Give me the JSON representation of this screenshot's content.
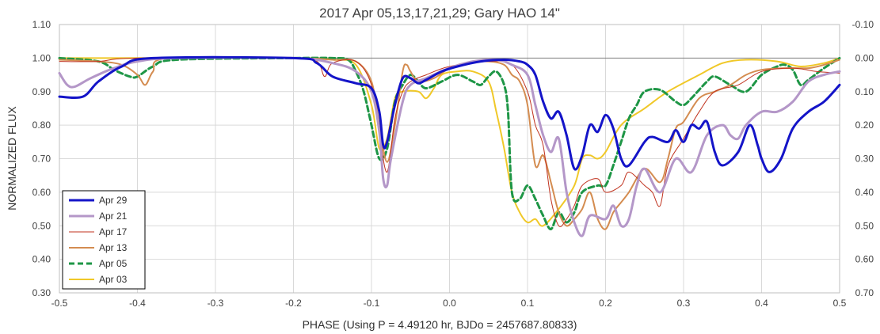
{
  "chart_data": {
    "type": "line",
    "title": "2017 Apr 05,13,17,21,29; Gary HAO 14\"",
    "xlabel": "PHASE (Using P = 4.49120 hr, BJDo = 2457687.80833)",
    "ylabel": "NORMALIZED FLUX",
    "xlim": [
      -0.5,
      0.5
    ],
    "ylim": [
      0.3,
      1.1
    ],
    "y2lim": [
      0.7,
      -0.1
    ],
    "x_ticks": [
      "-0.5",
      "-0.4",
      "-0.3",
      "-0.2",
      "-0.1",
      "0.0",
      "0.1",
      "0.2",
      "0.3",
      "0.4",
      "0.5"
    ],
    "y_ticks": [
      "0.30",
      "0.40",
      "0.50",
      "0.60",
      "0.70",
      "0.80",
      "0.90",
      "1.00",
      "1.10"
    ],
    "y2_ticks": [
      "0.70",
      "0.60",
      "0.50",
      "0.40",
      "0.30",
      "0.20",
      "0.10",
      "0.00",
      "-0.10"
    ],
    "grid": true,
    "legend_position": "bottom-left",
    "series": [
      {
        "name": "Apr 29",
        "color": "#1414c8",
        "width": 3,
        "dash": "",
        "points": [
          [
            -0.5,
            0.885
          ],
          [
            -0.47,
            0.885
          ],
          [
            -0.45,
            0.93
          ],
          [
            -0.42,
            0.975
          ],
          [
            -0.38,
            1.0
          ],
          [
            -0.2,
            1.0
          ],
          [
            -0.17,
            0.985
          ],
          [
            -0.15,
            0.945
          ],
          [
            -0.12,
            0.925
          ],
          [
            -0.1,
            0.91
          ],
          [
            -0.09,
            0.84
          ],
          [
            -0.085,
            0.74
          ],
          [
            -0.08,
            0.75
          ],
          [
            -0.07,
            0.86
          ],
          [
            -0.06,
            0.94
          ],
          [
            -0.05,
            0.94
          ],
          [
            -0.04,
            0.925
          ],
          [
            -0.03,
            0.935
          ],
          [
            -0.01,
            0.96
          ],
          [
            0.01,
            0.975
          ],
          [
            0.04,
            0.99
          ],
          [
            0.07,
            0.995
          ],
          [
            0.09,
            0.99
          ],
          [
            0.1,
            0.98
          ],
          [
            0.11,
            0.95
          ],
          [
            0.12,
            0.87
          ],
          [
            0.13,
            0.82
          ],
          [
            0.14,
            0.84
          ],
          [
            0.15,
            0.77
          ],
          [
            0.16,
            0.67
          ],
          [
            0.17,
            0.71
          ],
          [
            0.18,
            0.8
          ],
          [
            0.19,
            0.78
          ],
          [
            0.2,
            0.83
          ],
          [
            0.21,
            0.79
          ],
          [
            0.22,
            0.7
          ],
          [
            0.23,
            0.68
          ],
          [
            0.25,
            0.75
          ],
          [
            0.26,
            0.765
          ],
          [
            0.28,
            0.75
          ],
          [
            0.29,
            0.785
          ],
          [
            0.3,
            0.75
          ],
          [
            0.31,
            0.8
          ],
          [
            0.32,
            0.79
          ],
          [
            0.33,
            0.81
          ],
          [
            0.34,
            0.72
          ],
          [
            0.35,
            0.68
          ],
          [
            0.37,
            0.72
          ],
          [
            0.385,
            0.8
          ],
          [
            0.395,
            0.74
          ],
          [
            0.4,
            0.7
          ],
          [
            0.41,
            0.66
          ],
          [
            0.425,
            0.7
          ],
          [
            0.44,
            0.79
          ],
          [
            0.46,
            0.84
          ],
          [
            0.48,
            0.87
          ],
          [
            0.5,
            0.92
          ]
        ]
      },
      {
        "name": "Apr 21",
        "color": "#b497c8",
        "width": 3,
        "dash": "",
        "points": [
          [
            -0.5,
            0.955
          ],
          [
            -0.49,
            0.92
          ],
          [
            -0.48,
            0.915
          ],
          [
            -0.46,
            0.94
          ],
          [
            -0.43,
            0.97
          ],
          [
            -0.4,
            0.99
          ],
          [
            -0.35,
            1.0
          ],
          [
            -0.2,
            1.0
          ],
          [
            -0.15,
            0.985
          ],
          [
            -0.12,
            0.96
          ],
          [
            -0.1,
            0.9
          ],
          [
            -0.09,
            0.78
          ],
          [
            -0.085,
            0.64
          ],
          [
            -0.08,
            0.62
          ],
          [
            -0.075,
            0.7
          ],
          [
            -0.06,
            0.87
          ],
          [
            -0.05,
            0.92
          ],
          [
            -0.03,
            0.94
          ],
          [
            0.0,
            0.97
          ],
          [
            0.03,
            0.99
          ],
          [
            0.06,
            0.995
          ],
          [
            0.08,
            0.98
          ],
          [
            0.1,
            0.95
          ],
          [
            0.11,
            0.86
          ],
          [
            0.12,
            0.77
          ],
          [
            0.13,
            0.72
          ],
          [
            0.14,
            0.76
          ],
          [
            0.15,
            0.6
          ],
          [
            0.16,
            0.51
          ],
          [
            0.17,
            0.47
          ],
          [
            0.18,
            0.53
          ],
          [
            0.2,
            0.52
          ],
          [
            0.21,
            0.56
          ],
          [
            0.22,
            0.5
          ],
          [
            0.23,
            0.52
          ],
          [
            0.24,
            0.62
          ],
          [
            0.25,
            0.67
          ],
          [
            0.27,
            0.6
          ],
          [
            0.29,
            0.7
          ],
          [
            0.31,
            0.66
          ],
          [
            0.33,
            0.77
          ],
          [
            0.35,
            0.8
          ],
          [
            0.36,
            0.77
          ],
          [
            0.37,
            0.76
          ],
          [
            0.38,
            0.8
          ],
          [
            0.4,
            0.84
          ],
          [
            0.42,
            0.84
          ],
          [
            0.44,
            0.87
          ],
          [
            0.46,
            0.93
          ],
          [
            0.48,
            0.95
          ],
          [
            0.5,
            0.96
          ]
        ]
      },
      {
        "name": "Apr 17",
        "color": "#c0321e",
        "width": 1,
        "dash": "",
        "points": [
          [
            -0.5,
            0.99
          ],
          [
            -0.45,
            0.99
          ],
          [
            -0.4,
            1.0
          ],
          [
            -0.2,
            1.0
          ],
          [
            -0.17,
            0.99
          ],
          [
            -0.16,
            0.945
          ],
          [
            -0.15,
            0.985
          ],
          [
            -0.12,
            0.99
          ],
          [
            -0.1,
            0.92
          ],
          [
            -0.09,
            0.78
          ],
          [
            -0.08,
            0.66
          ],
          [
            -0.07,
            0.82
          ],
          [
            -0.06,
            0.9
          ],
          [
            -0.05,
            0.93
          ],
          [
            -0.03,
            0.95
          ],
          [
            0.0,
            0.975
          ],
          [
            0.05,
            0.99
          ],
          [
            0.08,
            0.98
          ],
          [
            0.1,
            0.9
          ],
          [
            0.11,
            0.8
          ],
          [
            0.12,
            0.74
          ],
          [
            0.13,
            0.58
          ],
          [
            0.14,
            0.5
          ],
          [
            0.15,
            0.52
          ],
          [
            0.16,
            0.56
          ],
          [
            0.17,
            0.62
          ],
          [
            0.19,
            0.64
          ],
          [
            0.2,
            0.6
          ],
          [
            0.22,
            0.62
          ],
          [
            0.23,
            0.66
          ],
          [
            0.25,
            0.62
          ],
          [
            0.26,
            0.6
          ],
          [
            0.27,
            0.56
          ],
          [
            0.28,
            0.68
          ],
          [
            0.3,
            0.76
          ],
          [
            0.32,
            0.84
          ],
          [
            0.34,
            0.9
          ],
          [
            0.37,
            0.92
          ],
          [
            0.4,
            0.96
          ],
          [
            0.44,
            0.97
          ],
          [
            0.47,
            0.96
          ],
          [
            0.5,
            0.955
          ]
        ]
      },
      {
        "name": "Apr 13",
        "color": "#d48c50",
        "width": 2,
        "dash": "",
        "points": [
          [
            -0.5,
            0.995
          ],
          [
            -0.45,
            0.99
          ],
          [
            -0.42,
            0.98
          ],
          [
            -0.4,
            0.95
          ],
          [
            -0.39,
            0.92
          ],
          [
            -0.38,
            0.96
          ],
          [
            -0.36,
            1.0
          ],
          [
            -0.2,
            1.0
          ],
          [
            -0.15,
            0.995
          ],
          [
            -0.12,
            0.99
          ],
          [
            -0.1,
            0.93
          ],
          [
            -0.09,
            0.8
          ],
          [
            -0.08,
            0.69
          ],
          [
            -0.07,
            0.8
          ],
          [
            -0.06,
            0.96
          ],
          [
            -0.055,
            0.98
          ],
          [
            -0.05,
            0.96
          ],
          [
            -0.04,
            0.93
          ],
          [
            -0.02,
            0.94
          ],
          [
            0.0,
            0.97
          ],
          [
            0.02,
            0.985
          ],
          [
            0.05,
            0.99
          ],
          [
            0.07,
            0.98
          ],
          [
            0.08,
            0.95
          ],
          [
            0.09,
            0.93
          ],
          [
            0.1,
            0.86
          ],
          [
            0.11,
            0.68
          ],
          [
            0.12,
            0.71
          ],
          [
            0.13,
            0.63
          ],
          [
            0.14,
            0.54
          ],
          [
            0.15,
            0.5
          ],
          [
            0.16,
            0.52
          ],
          [
            0.17,
            0.55
          ],
          [
            0.18,
            0.6
          ],
          [
            0.19,
            0.52
          ],
          [
            0.2,
            0.49
          ],
          [
            0.21,
            0.54
          ],
          [
            0.22,
            0.57
          ],
          [
            0.23,
            0.6
          ],
          [
            0.25,
            0.67
          ],
          [
            0.27,
            0.63
          ],
          [
            0.28,
            0.7
          ],
          [
            0.29,
            0.79
          ],
          [
            0.3,
            0.81
          ],
          [
            0.32,
            0.88
          ],
          [
            0.34,
            0.9
          ],
          [
            0.36,
            0.92
          ],
          [
            0.38,
            0.95
          ],
          [
            0.4,
            0.965
          ],
          [
            0.43,
            0.97
          ],
          [
            0.46,
            0.97
          ],
          [
            0.48,
            0.98
          ],
          [
            0.5,
            0.995
          ]
        ]
      },
      {
        "name": "Apr 05",
        "color": "#1e9646",
        "width": 3,
        "dash": "7,4",
        "points": [
          [
            -0.5,
            1.0
          ],
          [
            -0.45,
            0.99
          ],
          [
            -0.43,
            0.965
          ],
          [
            -0.41,
            0.945
          ],
          [
            -0.4,
            0.945
          ],
          [
            -0.38,
            0.975
          ],
          [
            -0.35,
            0.995
          ],
          [
            -0.2,
            1.0
          ],
          [
            -0.15,
            1.0
          ],
          [
            -0.13,
            0.995
          ],
          [
            -0.12,
            0.96
          ],
          [
            -0.11,
            0.9
          ],
          [
            -0.1,
            0.8
          ],
          [
            -0.09,
            0.7
          ],
          [
            -0.08,
            0.73
          ],
          [
            -0.07,
            0.87
          ],
          [
            -0.06,
            0.92
          ],
          [
            -0.05,
            0.95
          ],
          [
            -0.04,
            0.93
          ],
          [
            -0.03,
            0.91
          ],
          [
            -0.01,
            0.93
          ],
          [
            0.01,
            0.95
          ],
          [
            0.03,
            0.93
          ],
          [
            0.04,
            0.92
          ],
          [
            0.05,
            0.945
          ],
          [
            0.06,
            0.96
          ],
          [
            0.07,
            0.92
          ],
          [
            0.075,
            0.84
          ],
          [
            0.08,
            0.6
          ],
          [
            0.09,
            0.58
          ],
          [
            0.1,
            0.62
          ],
          [
            0.11,
            0.58
          ],
          [
            0.12,
            0.53
          ],
          [
            0.13,
            0.49
          ],
          [
            0.14,
            0.54
          ],
          [
            0.15,
            0.51
          ],
          [
            0.16,
            0.54
          ],
          [
            0.17,
            0.6
          ],
          [
            0.19,
            0.62
          ],
          [
            0.2,
            0.62
          ],
          [
            0.21,
            0.68
          ],
          [
            0.22,
            0.75
          ],
          [
            0.23,
            0.82
          ],
          [
            0.24,
            0.86
          ],
          [
            0.25,
            0.9
          ],
          [
            0.27,
            0.905
          ],
          [
            0.29,
            0.87
          ],
          [
            0.3,
            0.86
          ],
          [
            0.31,
            0.88
          ],
          [
            0.33,
            0.93
          ],
          [
            0.34,
            0.945
          ],
          [
            0.36,
            0.92
          ],
          [
            0.38,
            0.9
          ],
          [
            0.4,
            0.95
          ],
          [
            0.42,
            0.975
          ],
          [
            0.43,
            0.98
          ],
          [
            0.44,
            0.965
          ],
          [
            0.45,
            0.92
          ],
          [
            0.46,
            0.935
          ],
          [
            0.48,
            0.97
          ],
          [
            0.5,
            1.0
          ]
        ]
      },
      {
        "name": "Apr 03",
        "color": "#f0c828",
        "width": 2,
        "dash": "",
        "points": [
          [
            -0.5,
            1.0
          ],
          [
            -0.2,
            1.0
          ],
          [
            -0.15,
            0.995
          ],
          [
            -0.12,
            0.98
          ],
          [
            -0.1,
            0.86
          ],
          [
            -0.09,
            0.73
          ],
          [
            -0.08,
            0.76
          ],
          [
            -0.07,
            0.88
          ],
          [
            -0.06,
            0.9
          ],
          [
            -0.04,
            0.9
          ],
          [
            -0.03,
            0.88
          ],
          [
            -0.02,
            0.91
          ],
          [
            -0.01,
            0.95
          ],
          [
            0.01,
            0.96
          ],
          [
            0.03,
            0.96
          ],
          [
            0.05,
            0.93
          ],
          [
            0.06,
            0.84
          ],
          [
            0.07,
            0.73
          ],
          [
            0.08,
            0.6
          ],
          [
            0.09,
            0.54
          ],
          [
            0.1,
            0.51
          ],
          [
            0.11,
            0.52
          ],
          [
            0.12,
            0.5
          ],
          [
            0.14,
            0.55
          ],
          [
            0.16,
            0.62
          ],
          [
            0.17,
            0.7
          ],
          [
            0.18,
            0.71
          ],
          [
            0.19,
            0.7
          ],
          [
            0.2,
            0.72
          ],
          [
            0.22,
            0.8
          ],
          [
            0.25,
            0.85
          ],
          [
            0.28,
            0.9
          ],
          [
            0.32,
            0.95
          ],
          [
            0.35,
            0.985
          ],
          [
            0.38,
            0.995
          ],
          [
            0.42,
            0.99
          ],
          [
            0.45,
            0.975
          ],
          [
            0.48,
            0.985
          ],
          [
            0.5,
            1.0
          ]
        ]
      }
    ]
  }
}
